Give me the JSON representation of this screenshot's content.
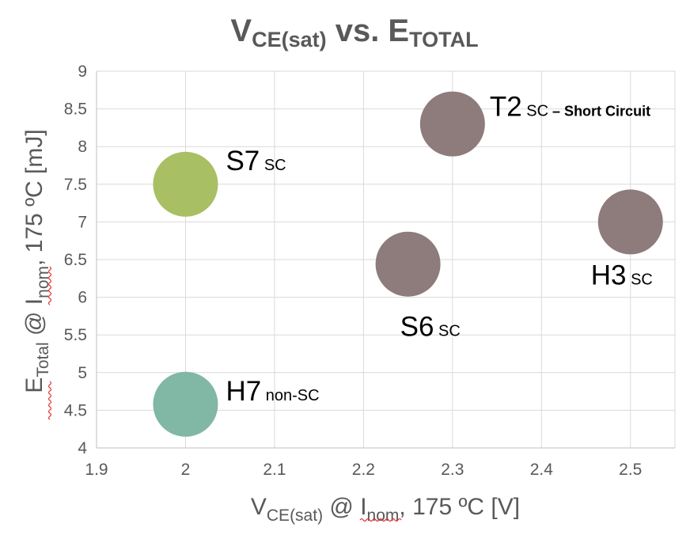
{
  "chart_data": {
    "type": "scatter",
    "subtype": "bubble",
    "title": {
      "main_1": "V",
      "main_1_sub": "CE(sat)",
      "main_2": " vs. E",
      "main_2_sub": "TOTAL"
    },
    "xlabel": {
      "main": "V",
      "sub1": "CE(sat)",
      "mid": " @ I",
      "sub2": "nom",
      "tail": ", 175 ºC [V]"
    },
    "ylabel": {
      "main": "E",
      "sub1": "Total",
      "mid": " @ I",
      "sub2": "nom",
      "tail": ", 175 ºC [mJ]"
    },
    "xlim": [
      1.9,
      2.55
    ],
    "ylim": [
      4,
      9
    ],
    "x_ticks": [
      "1.9",
      "2",
      "2.1",
      "2.2",
      "2.3",
      "2.4",
      "2.5"
    ],
    "x_tick_values": [
      1.9,
      2.0,
      2.1,
      2.2,
      2.3,
      2.4,
      2.5
    ],
    "y_ticks": [
      "4",
      "4.5",
      "5",
      "5.5",
      "6",
      "6.5",
      "7",
      "7.5",
      "8",
      "8.5",
      "9"
    ],
    "y_tick_values": [
      4,
      4.5,
      5,
      5.5,
      6,
      6.5,
      7,
      7.5,
      8,
      8.5,
      9
    ],
    "grid": true,
    "points": [
      {
        "name": "S7",
        "tag": "SC",
        "x": 2.0,
        "y": 7.5,
        "color": "#a9bf63",
        "label_pos": "right"
      },
      {
        "name": "H7",
        "tag": "non-SC",
        "x": 2.0,
        "y": 4.58,
        "color": "#80b7a5",
        "label_pos": "right"
      },
      {
        "name": "S6",
        "tag": "SC",
        "x": 2.25,
        "y": 6.44,
        "color": "#8e7b7c",
        "label_pos": "below"
      },
      {
        "name": "T2",
        "tag": "SC",
        "extra": " – Short Circuit",
        "x": 2.3,
        "y": 8.3,
        "color": "#8e7b7c",
        "label_pos": "right"
      },
      {
        "name": "H3",
        "tag": "SC",
        "x": 2.5,
        "y": 7.0,
        "color": "#8e7b7c",
        "label_pos": "below-left"
      }
    ]
  }
}
